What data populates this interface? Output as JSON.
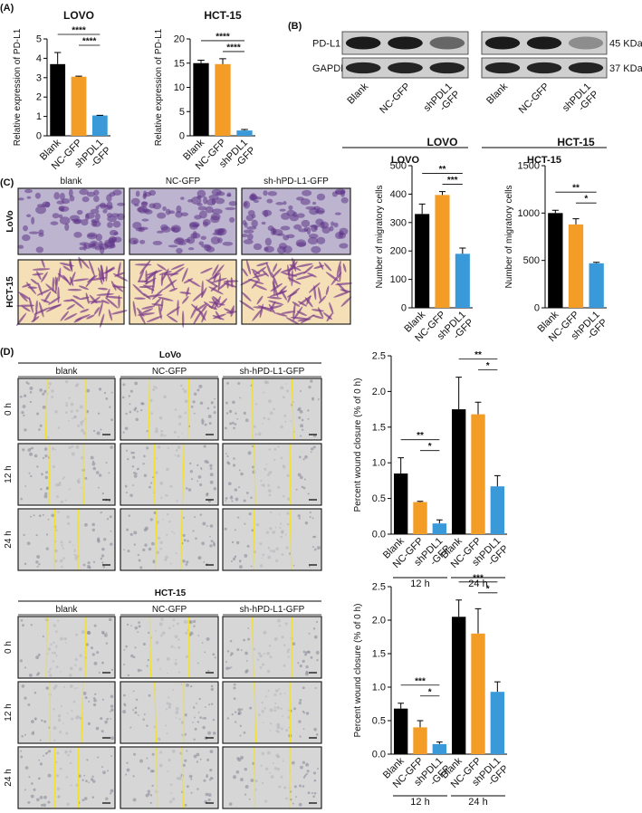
{
  "panel_labels": [
    "(A)",
    "(B)",
    "(C)",
    "(D)"
  ],
  "panel_b": {
    "rows": [
      "PD-L1",
      "GAPDH"
    ],
    "sizes": [
      "45 KDa",
      "37 KDa"
    ],
    "blots": [
      {
        "title": "LOVO",
        "lanes": [
          "Blank",
          "NC-GFP",
          "shPDL1\n-GFP"
        ]
      },
      {
        "title": "HCT-15",
        "lanes": [
          "Blank",
          "NC-GFP",
          "shPDL1\n-GFP"
        ]
      }
    ]
  },
  "panel_c": {
    "columns": [
      "blank",
      "NC-GFP",
      "sh-hPD-L1-GFP"
    ],
    "rows": [
      "LoVo",
      "HCT-15"
    ]
  },
  "panel_d": [
    {
      "title": "LoVo",
      "columns": [
        "blank",
        "NC-GFP",
        "sh-hPD-L1-GFP"
      ],
      "rows": [
        "0 h",
        "12 h",
        "24 h"
      ]
    },
    {
      "title": "HCT-15",
      "columns": [
        "blank",
        "NC-GFP",
        "sh-hPD-L1-GFP"
      ],
      "rows": [
        "0 h",
        "12 h",
        "24 h"
      ]
    }
  ],
  "chart_data": [
    {
      "type": "bar",
      "title": "LOVO",
      "ylabel": "Relative expression of PD-L1",
      "colors": [
        "#000000",
        "#f39c26",
        "#3a9ad9"
      ],
      "ylim": [
        0,
        5
      ],
      "yticks": [
        0,
        1,
        2,
        3,
        4,
        5
      ],
      "groups": [
        {
          "categories": [
            "Blank",
            "NC-GFP",
            "shPDL1\n-GFP"
          ],
          "values": [
            3.7,
            3.05,
            1.05
          ],
          "errors": [
            0.6,
            0.03,
            0.01
          ],
          "annotations": [
            "****",
            "****"
          ]
        }
      ]
    },
    {
      "type": "bar",
      "title": "HCT-15",
      "ylabel": "Relative expression of PD-L1",
      "colors": [
        "#000000",
        "#f39c26",
        "#3a9ad9"
      ],
      "ylim": [
        0,
        20
      ],
      "yticks": [
        0,
        5,
        10,
        15,
        20
      ],
      "groups": [
        {
          "categories": [
            "Blank",
            "NC-GFP",
            "shPDL1\n-GFP"
          ],
          "values": [
            15,
            14.8,
            1.1
          ],
          "errors": [
            0.6,
            1.1,
            0.2
          ],
          "annotations": [
            "****",
            "****"
          ]
        }
      ]
    },
    {
      "type": "bar",
      "title": "LOVO",
      "ylabel": "Number of migratory cells",
      "colors": [
        "#000000",
        "#f39c26",
        "#3a9ad9"
      ],
      "ylim": [
        0,
        500
      ],
      "yticks": [
        0,
        100,
        200,
        300,
        400,
        500
      ],
      "groups": [
        {
          "categories": [
            "Blank",
            "NC-GFP",
            "shPDL1\n-GFP"
          ],
          "values": [
            330,
            397,
            190
          ],
          "errors": [
            35,
            12,
            20
          ],
          "annotations": [
            "**",
            "***"
          ]
        }
      ]
    },
    {
      "type": "bar",
      "title": "HCT-15",
      "ylabel": "Number of migratory cells",
      "colors": [
        "#000000",
        "#f39c26",
        "#3a9ad9"
      ],
      "ylim": [
        0,
        1500
      ],
      "yticks": [
        0,
        500,
        1000,
        1500
      ],
      "groups": [
        {
          "categories": [
            "Blank",
            "NC-GFP",
            "shPDL1\n-GFP"
          ],
          "values": [
            1000,
            880,
            470
          ],
          "errors": [
            30,
            60,
            10
          ],
          "annotations": [
            "**",
            "*"
          ]
        }
      ]
    },
    {
      "type": "bar",
      "ylabel": "Percent wound closure (% of 0 h)",
      "colors": [
        "#000000",
        "#f39c26",
        "#3a9ad9"
      ],
      "ylim": [
        0,
        2.5
      ],
      "yticks": [
        {
          "value": 0,
          "label": "0.0"
        },
        {
          "value": 0.5,
          "label": "0.5"
        },
        {
          "value": 1,
          "label": "1.0"
        },
        {
          "value": 1.5,
          "label": "1.5"
        },
        {
          "value": 2,
          "label": "2.0"
        },
        {
          "value": 2.5,
          "label": "2.5"
        }
      ],
      "groups": [
        {
          "label": "12 h",
          "categories": [
            "Blank",
            "NC-GFP",
            "shPDL1\n-GFP"
          ],
          "values": [
            0.85,
            0.45,
            0.15
          ],
          "errors": [
            0.22,
            0.01,
            0.05
          ],
          "annotations": [
            "**",
            "*"
          ]
        },
        {
          "label": "24 h",
          "categories": [
            "Blank",
            "NC-GFP",
            "shPDL1\n-GFP"
          ],
          "values": [
            1.75,
            1.68,
            0.67
          ],
          "errors": [
            0.45,
            0.17,
            0.15
          ],
          "annotations": [
            "**",
            "*"
          ]
        }
      ]
    },
    {
      "type": "bar",
      "ylabel": "Percent wound closure (% of 0 h)",
      "colors": [
        "#000000",
        "#f39c26",
        "#3a9ad9"
      ],
      "ylim": [
        0,
        2.5
      ],
      "yticks": [
        {
          "value": 0,
          "label": "0.0"
        },
        {
          "value": 0.5,
          "label": "0.5"
        },
        {
          "value": 1,
          "label": "1.0"
        },
        {
          "value": 1.5,
          "label": "1.5"
        },
        {
          "value": 2,
          "label": "2.0"
        },
        {
          "value": 2.5,
          "label": "2.5"
        }
      ],
      "groups": [
        {
          "label": "12 h",
          "categories": [
            "Blank",
            "NC-GFP",
            "shPDL1\n-GFP"
          ],
          "values": [
            0.68,
            0.4,
            0.15
          ],
          "errors": [
            0.08,
            0.1,
            0.03
          ],
          "annotations": [
            "***",
            "*"
          ]
        },
        {
          "label": "24 h",
          "categories": [
            "Blank",
            "NC-GFP",
            "shPDL1\n-GFP"
          ],
          "values": [
            2.05,
            1.8,
            0.93
          ],
          "errors": [
            0.25,
            0.37,
            0.15
          ],
          "annotations": [
            "***",
            "*"
          ]
        }
      ]
    }
  ]
}
